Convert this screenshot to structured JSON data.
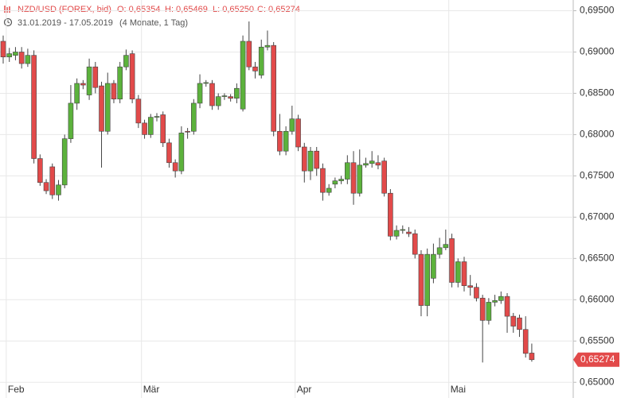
{
  "chart_data": {
    "type": "candlestick",
    "title": "NZD/USD (FOREX, bid)",
    "ohlc_labels": [
      "O: 0,65354",
      "H: 0,65469",
      "L: 0,65250",
      "C: 0,65274"
    ],
    "subtitle": "31.01.2019 - 17.05.2019",
    "period": "(4 Monate, 1 Tag)",
    "up_color": "#5cb23c",
    "down_color": "#e24a4a",
    "grid": true,
    "ylim": [
      0.6481,
      0.6963
    ],
    "yticks": [
      {
        "value": 0.65,
        "label": "0,65000"
      },
      {
        "value": 0.655,
        "label": "0,65500"
      },
      {
        "value": 0.66,
        "label": "0,66000"
      },
      {
        "value": 0.665,
        "label": "0,66500"
      },
      {
        "value": 0.67,
        "label": "0,67000"
      },
      {
        "value": 0.675,
        "label": "0,67500"
      },
      {
        "value": 0.68,
        "label": "0,68000"
      },
      {
        "value": 0.685,
        "label": "0,68500"
      },
      {
        "value": 0.69,
        "label": "0,69000"
      },
      {
        "value": 0.695,
        "label": "0,69500"
      }
    ],
    "last_price": {
      "value": 0.65274,
      "label": "0,65274"
    },
    "categories": [
      null,
      "Feb",
      null,
      null,
      null,
      null,
      null,
      null,
      null,
      null,
      null,
      null,
      null,
      null,
      null,
      null,
      null,
      null,
      null,
      null,
      null,
      null,
      null,
      "Mär",
      null,
      null,
      null,
      null,
      null,
      null,
      null,
      null,
      null,
      null,
      null,
      null,
      null,
      null,
      null,
      null,
      null,
      null,
      null,
      null,
      null,
      null,
      null,
      null,
      "Apr",
      null,
      null,
      null,
      null,
      null,
      null,
      null,
      null,
      null,
      null,
      null,
      null,
      null,
      null,
      null,
      null,
      null,
      null,
      null,
      null,
      null,
      null,
      null,
      null,
      "Mai",
      null,
      null,
      null,
      null,
      null,
      null,
      null,
      null,
      null,
      null,
      null,
      null,
      null
    ],
    "open": [
      0.6913,
      0.6894,
      0.6896,
      0.69,
      0.6886,
      0.6896,
      0.6771,
      0.6742,
      0.6761,
      0.6727,
      0.6739,
      0.6795,
      0.6838,
      0.6862,
      0.6848,
      0.6882,
      0.6859,
      0.6804,
      0.6862,
      0.6843,
      0.6882,
      0.6898,
      0.6843,
      0.6814,
      0.68,
      0.6821,
      0.6824,
      0.679,
      0.6766,
      0.6756,
      0.6804,
      0.6804,
      0.6838,
      0.6862,
      0.6862,
      0.6835,
      0.6846,
      0.6846,
      0.6844,
      0.6831,
      0.6913,
      0.6882,
      0.6872,
      0.6906,
      0.6908,
      0.6804,
      0.678,
      0.6804,
      0.6819,
      0.6785,
      0.6756,
      0.678,
      0.6759,
      0.673,
      0.674,
      0.6744,
      0.6746,
      0.6766,
      0.6729,
      0.6763,
      0.6765,
      0.6766,
      0.6768,
      0.6729,
      0.6677,
      0.6684,
      0.6682,
      0.668,
      0.6655,
      0.6593,
      0.6626,
      0.6655,
      0.6663,
      0.6674,
      0.6621,
      0.6646,
      0.6617,
      0.6615,
      0.6602,
      0.6575,
      0.6597,
      0.6599,
      0.6604,
      0.658,
      0.6578,
      0.6564,
      0.65354
    ],
    "high": [
      0.692,
      0.6905,
      0.6906,
      0.6906,
      0.6904,
      0.6902,
      0.6776,
      0.6746,
      0.6765,
      0.6745,
      0.68,
      0.686,
      0.6868,
      0.6866,
      0.6892,
      0.6888,
      0.6864,
      0.6875,
      0.6866,
      0.6888,
      0.6903,
      0.6902,
      0.6848,
      0.6818,
      0.6825,
      0.6826,
      0.6828,
      0.6795,
      0.677,
      0.681,
      0.6808,
      0.6843,
      0.6873,
      0.6866,
      0.6866,
      0.685,
      0.685,
      0.6849,
      0.6862,
      0.692,
      0.6937,
      0.6888,
      0.6915,
      0.6926,
      0.6912,
      0.6825,
      0.681,
      0.6835,
      0.6824,
      0.679,
      0.6785,
      0.6785,
      0.6765,
      0.674,
      0.6748,
      0.675,
      0.6775,
      0.678,
      0.6782,
      0.6772,
      0.678,
      0.6775,
      0.6772,
      0.6734,
      0.669,
      0.669,
      0.6688,
      0.6685,
      0.666,
      0.6662,
      0.6668,
      0.6675,
      0.6685,
      0.668,
      0.665,
      0.6652,
      0.663,
      0.662,
      0.6606,
      0.6602,
      0.6606,
      0.661,
      0.6608,
      0.6584,
      0.6582,
      0.658,
      0.65469
    ],
    "low": [
      0.6886,
      0.6888,
      0.689,
      0.688,
      0.6882,
      0.6765,
      0.6738,
      0.6728,
      0.6722,
      0.672,
      0.6735,
      0.679,
      0.683,
      0.6855,
      0.6842,
      0.685,
      0.676,
      0.68,
      0.6838,
      0.6838,
      0.6878,
      0.6838,
      0.6808,
      0.6795,
      0.6796,
      0.6816,
      0.6785,
      0.676,
      0.6748,
      0.6752,
      0.6795,
      0.68,
      0.6832,
      0.6858,
      0.683,
      0.683,
      0.6842,
      0.684,
      0.6838,
      0.6828,
      0.6878,
      0.6868,
      0.6868,
      0.6902,
      0.6798,
      0.6775,
      0.6775,
      0.68,
      0.678,
      0.6742,
      0.6745,
      0.675,
      0.672,
      0.6726,
      0.6735,
      0.674,
      0.674,
      0.6715,
      0.6725,
      0.676,
      0.676,
      0.6758,
      0.6725,
      0.6672,
      0.6673,
      0.668,
      0.6676,
      0.665,
      0.658,
      0.658,
      0.662,
      0.665,
      0.666,
      0.6615,
      0.6615,
      0.661,
      0.6605,
      0.6598,
      0.6524,
      0.657,
      0.6592,
      0.6595,
      0.656,
      0.656,
      0.6555,
      0.653,
      0.6525
    ],
    "close": [
      0.6894,
      0.6898,
      0.69,
      0.6886,
      0.6896,
      0.6771,
      0.6742,
      0.6732,
      0.6727,
      0.6739,
      0.6795,
      0.6838,
      0.6862,
      0.686,
      0.6882,
      0.6857,
      0.6804,
      0.6862,
      0.6843,
      0.6882,
      0.6896,
      0.6843,
      0.6814,
      0.68,
      0.6821,
      0.6822,
      0.679,
      0.6766,
      0.6756,
      0.6802,
      0.6803,
      0.6838,
      0.6862,
      0.6863,
      0.6835,
      0.6846,
      0.6847,
      0.6844,
      0.6856,
      0.6913,
      0.6882,
      0.6877,
      0.6906,
      0.6908,
      0.6804,
      0.678,
      0.6804,
      0.6819,
      0.6785,
      0.6756,
      0.678,
      0.6759,
      0.673,
      0.6735,
      0.6744,
      0.6746,
      0.6766,
      0.6729,
      0.6763,
      0.6765,
      0.6768,
      0.6763,
      0.6729,
      0.6677,
      0.6684,
      0.6685,
      0.668,
      0.6655,
      0.6593,
      0.6655,
      0.6655,
      0.6663,
      0.6667,
      0.6621,
      0.6646,
      0.6617,
      0.6615,
      0.6602,
      0.6575,
      0.6597,
      0.6599,
      0.6604,
      0.658,
      0.6568,
      0.6564,
      0.6535,
      0.65274
    ]
  }
}
